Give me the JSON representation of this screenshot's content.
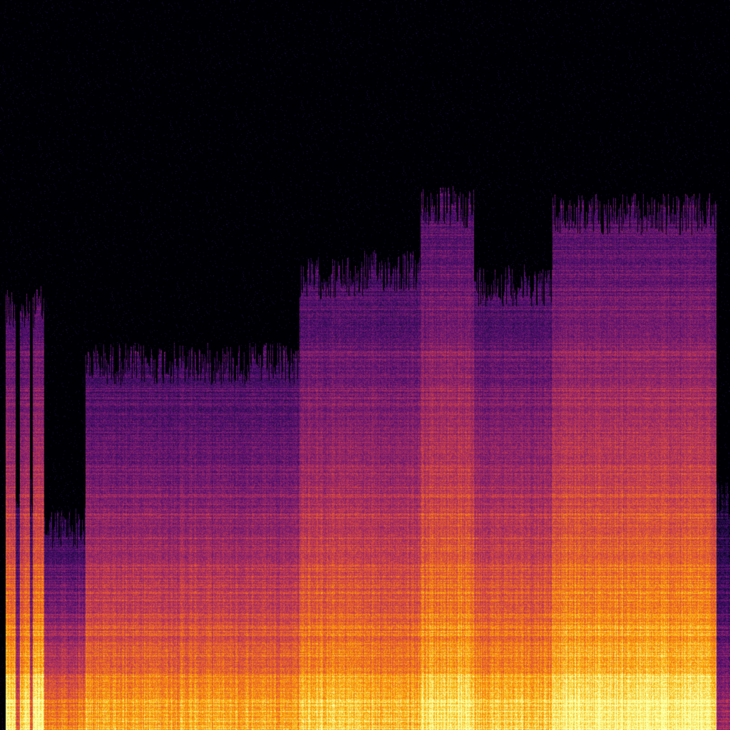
{
  "image": {
    "kind": "spectrogram",
    "colormap": [
      "#000004",
      "#1b0c41",
      "#4a0c6b",
      "#781c6d",
      "#a52c60",
      "#cf4446",
      "#ed6925",
      "#fb9b06",
      "#f7d13d",
      "#fcffa4"
    ],
    "background": "#000000"
  }
}
